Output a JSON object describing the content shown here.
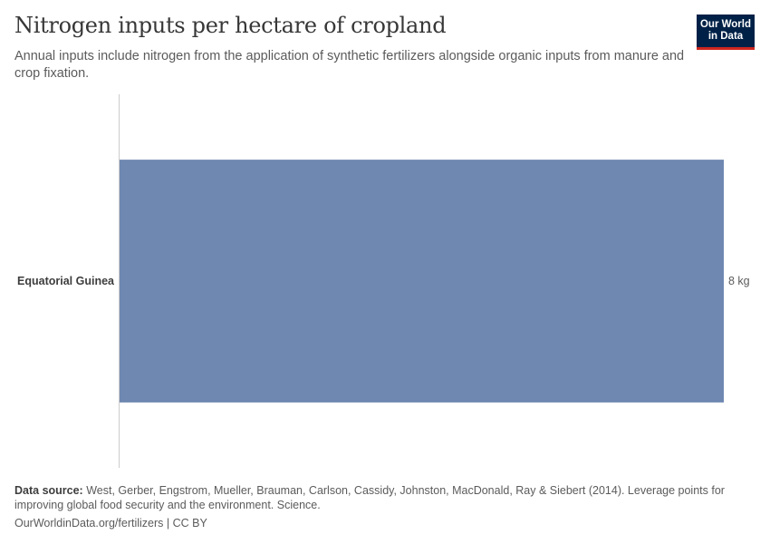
{
  "header": {
    "title": "Nitrogen inputs per hectare of cropland",
    "subtitle": "Annual inputs include nitrogen from the application of synthetic fertilizers alongside organic inputs from manure and crop fixation."
  },
  "logo": {
    "line1": "Our World",
    "line2": "in Data"
  },
  "colors": {
    "bar": "#6f88b1",
    "logo_bg": "#002147",
    "logo_accent": "#ce261e",
    "axis": "#cccccc"
  },
  "chart_data": {
    "type": "bar",
    "orientation": "horizontal",
    "categories": [
      "Equatorial Guinea"
    ],
    "values": [
      8
    ],
    "value_labels": [
      "8 kg"
    ],
    "unit": "kg",
    "xlim": [
      0,
      8
    ],
    "grid": false,
    "legend": "none"
  },
  "footer": {
    "source_label": "Data source:",
    "source_text": "West, Gerber, Engstrom, Mueller, Brauman, Carlson, Cassidy, Johnston, MacDonald, Ray & Siebert (2014). Leverage points for improving global food security and the environment. Science.",
    "link_text": "OurWorldinData.org/fertilizers | CC BY"
  }
}
